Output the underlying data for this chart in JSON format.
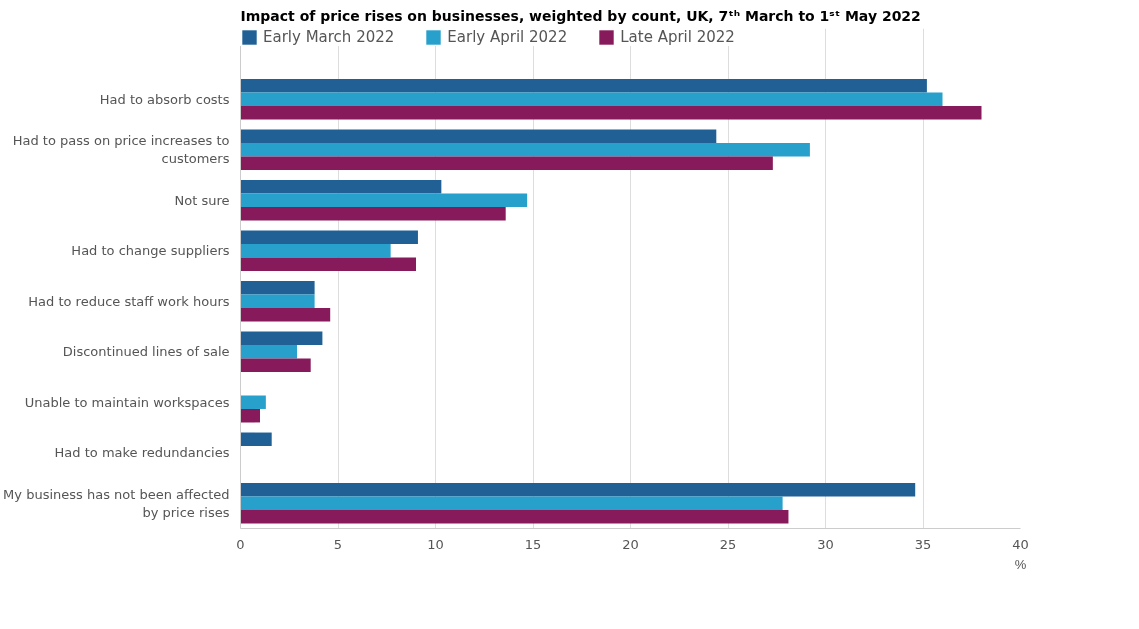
{
  "chart_data": {
    "type": "bar",
    "orientation": "horizontal",
    "title": "Impact of price rises on businesses, weighted by count, UK, 7ᵗʰ March to 1ˢᵗ May 2022",
    "xlabel": "%",
    "categories": [
      "Had to absorb costs",
      "Had to pass on price increases to customers",
      "Not sure",
      "Had to change suppliers",
      "Had to reduce staff work hours",
      "Discontinued lines of sale",
      "Unable to maintain workspaces",
      "Had to make redundancies",
      "My business has not been affected by price rises"
    ],
    "series": [
      {
        "name": "Early March 2022",
        "color": "#206095",
        "values": [
          35.2,
          24.4,
          10.3,
          9.1,
          3.8,
          4.2,
          null,
          1.6,
          34.6
        ]
      },
      {
        "name": "Early April 2022",
        "color": "#27a0cc",
        "values": [
          36.0,
          29.2,
          14.7,
          7.7,
          3.8,
          2.9,
          1.3,
          null,
          27.8
        ]
      },
      {
        "name": "Late April 2022",
        "color": "#871a5b",
        "values": [
          38.0,
          27.3,
          13.6,
          9.0,
          4.6,
          3.6,
          1.0,
          null,
          28.1
        ]
      }
    ],
    "xlim": [
      0,
      40
    ],
    "xticks": [
      0,
      5,
      10,
      15,
      20,
      25,
      30,
      35,
      40
    ],
    "grid": "x",
    "legend": "top left"
  }
}
